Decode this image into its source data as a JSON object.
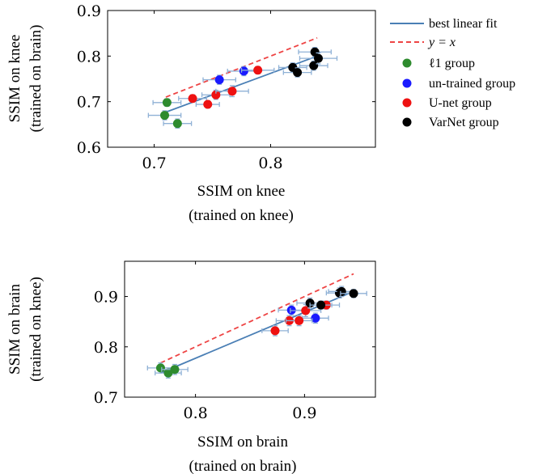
{
  "colors": {
    "fit": "#4a7fb5",
    "identity": "#ee4444",
    "errorbar": "#8fb1d6",
    "l1": "#2e8b2e",
    "untrained": "#1a1aff",
    "unet": "#ee1111",
    "varnet": "#000000"
  },
  "legend": {
    "fit": "best linear fit",
    "identity": "y = x",
    "groups": {
      "l1": "ℓ1 group",
      "untrained": "un-trained group",
      "unet": "U-net group",
      "varnet": "VarNet group"
    }
  },
  "chart_data": [
    {
      "type": "scatter",
      "xlabel": [
        "SSIM on knee",
        "(trained on knee)"
      ],
      "ylabel": [
        "SSIM on knee",
        "(trained on brain)"
      ],
      "xlim": [
        0.66,
        0.89
      ],
      "ylim": [
        0.6,
        0.9
      ],
      "xticks": [
        "0.7",
        "0.8"
      ],
      "yticks": [
        "0.6",
        "0.7",
        "0.8",
        "0.9"
      ],
      "fit": [
        [
          0.71,
          0.677
        ],
        [
          0.84,
          0.8
        ]
      ],
      "identity": [
        [
          0.71,
          0.71
        ],
        [
          0.84,
          0.84
        ]
      ],
      "series": [
        {
          "group": "l1",
          "points": [
            [
              0.711,
              0.698,
              0.012,
              0.008
            ],
            [
              0.709,
              0.67,
              0.014,
              0.01
            ],
            [
              0.72,
              0.652,
              0.012,
              0.01
            ]
          ]
        },
        {
          "group": "untrained",
          "points": [
            [
              0.756,
              0.748,
              0.014,
              0.01
            ],
            [
              0.777,
              0.767,
              0.014,
              0.01
            ]
          ]
        },
        {
          "group": "unet",
          "points": [
            [
              0.733,
              0.707,
              0.012,
              0.008
            ],
            [
              0.746,
              0.694,
              0.01,
              0.008
            ],
            [
              0.753,
              0.715,
              0.012,
              0.01
            ],
            [
              0.767,
              0.723,
              0.014,
              0.012
            ],
            [
              0.789,
              0.769,
              0.014,
              0.008
            ]
          ]
        },
        {
          "group": "varnet",
          "points": [
            [
              0.819,
              0.775,
              0.012,
              0.01
            ],
            [
              0.823,
              0.764,
              0.012,
              0.01
            ],
            [
              0.837,
              0.779,
              0.012,
              0.01
            ],
            [
              0.838,
              0.809,
              0.014,
              0.01
            ],
            [
              0.841,
              0.795,
              0.016,
              0.012
            ]
          ]
        }
      ]
    },
    {
      "type": "scatter",
      "xlabel": [
        "SSIM on brain",
        "(trained on brain)"
      ],
      "ylabel": [
        "SSIM on brain",
        "(trained on knee)"
      ],
      "xlim": [
        0.735,
        0.965
      ],
      "ylim": [
        0.7,
        0.97
      ],
      "xticks": [
        "0.8",
        "0.9"
      ],
      "yticks": [
        "0.7",
        "0.8",
        "0.9"
      ],
      "fit": [
        [
          0.768,
          0.748
        ],
        [
          0.945,
          0.91
        ]
      ],
      "identity": [
        [
          0.768,
          0.768
        ],
        [
          0.945,
          0.945
        ]
      ],
      "series": [
        {
          "group": "l1",
          "points": [
            [
              0.768,
              0.758,
              0.012,
              0.01
            ],
            [
              0.775,
              0.748,
              0.012,
              0.01
            ],
            [
              0.781,
              0.755,
              0.012,
              0.01
            ]
          ]
        },
        {
          "group": "untrained",
          "points": [
            [
              0.888,
              0.873,
              0.012,
              0.01
            ],
            [
              0.91,
              0.857,
              0.012,
              0.01
            ]
          ]
        },
        {
          "group": "unet",
          "points": [
            [
              0.873,
              0.832,
              0.012,
              0.01
            ],
            [
              0.886,
              0.852,
              0.012,
              0.01
            ],
            [
              0.895,
              0.852,
              0.012,
              0.01
            ],
            [
              0.901,
              0.872,
              0.014,
              0.012
            ],
            [
              0.92,
              0.883,
              0.012,
              0.008
            ]
          ]
        },
        {
          "group": "varnet",
          "points": [
            [
              0.905,
              0.887,
              0.012,
              0.01
            ],
            [
              0.915,
              0.883,
              0.01,
              0.008
            ],
            [
              0.932,
              0.907,
              0.012,
              0.01
            ],
            [
              0.934,
              0.91,
              0.012,
              0.01
            ],
            [
              0.945,
              0.906,
              0.012,
              0.008
            ]
          ]
        }
      ]
    }
  ]
}
